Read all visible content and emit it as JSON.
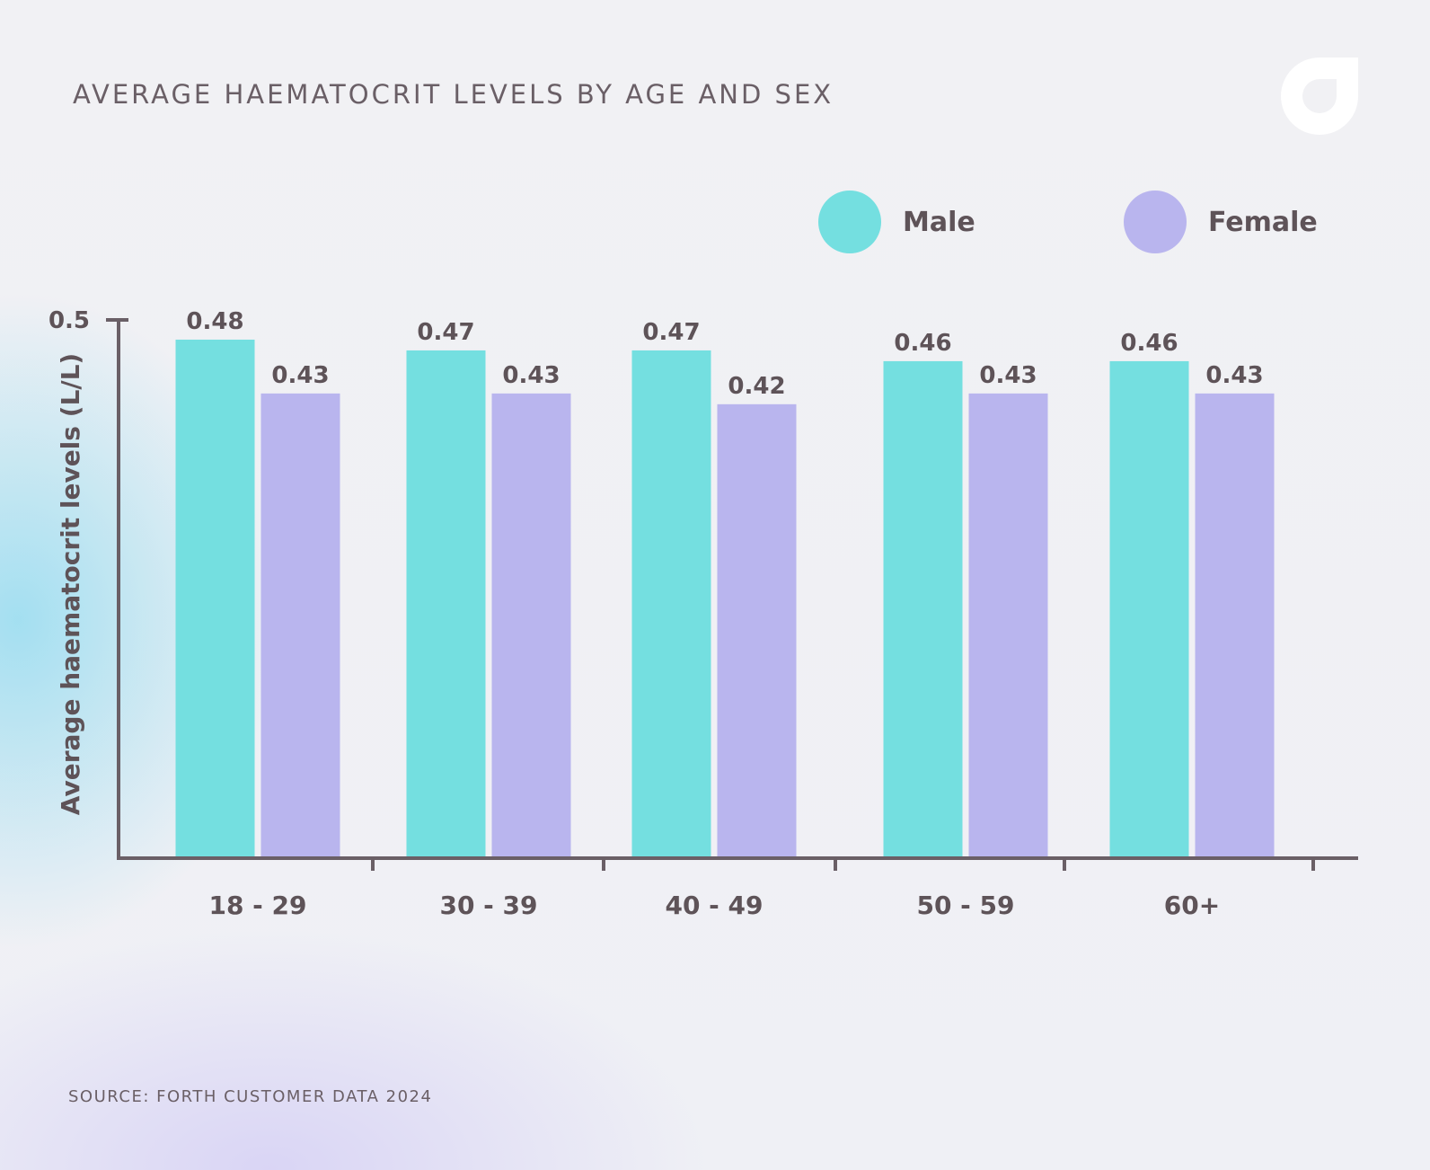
{
  "title": "AVERAGE HAEMATOCRIT LEVELS BY AGE AND SEX",
  "source": "SOURCE: FORTH CUSTOMER DATA 2024",
  "logo_icon": "forth-logo-icon",
  "colors": {
    "male": "#74dfe0",
    "female": "#b9b5ee",
    "axis": "#6a5f66",
    "text": "#5e5358"
  },
  "legend": [
    {
      "name": "Male",
      "color": "#74dfe0"
    },
    {
      "name": "Female",
      "color": "#b9b5ee"
    }
  ],
  "chart_data": {
    "type": "bar",
    "title": "AVERAGE HAEMATOCRIT LEVELS BY AGE AND SEX",
    "categories": [
      "18 - 29",
      "30 - 39",
      "40 - 49",
      "50 - 59",
      "60+"
    ],
    "series": [
      {
        "name": "Male",
        "values": [
          0.48,
          0.47,
          0.47,
          0.46,
          0.46
        ],
        "labels": [
          "0.48",
          "0.47",
          "0.47",
          "0.46",
          "0.46"
        ]
      },
      {
        "name": "Female",
        "values": [
          0.43,
          0.43,
          0.42,
          0.43,
          0.43
        ],
        "labels": [
          "0.43",
          "0.43",
          "0.42",
          "0.43",
          "0.43"
        ]
      }
    ],
    "xlabel": "",
    "ylabel": "Average haematocrit levels (L/L)",
    "yticks": [
      "0.5"
    ],
    "ylim": [
      0,
      0.5
    ],
    "legend_position": "top-right",
    "grid": false
  }
}
